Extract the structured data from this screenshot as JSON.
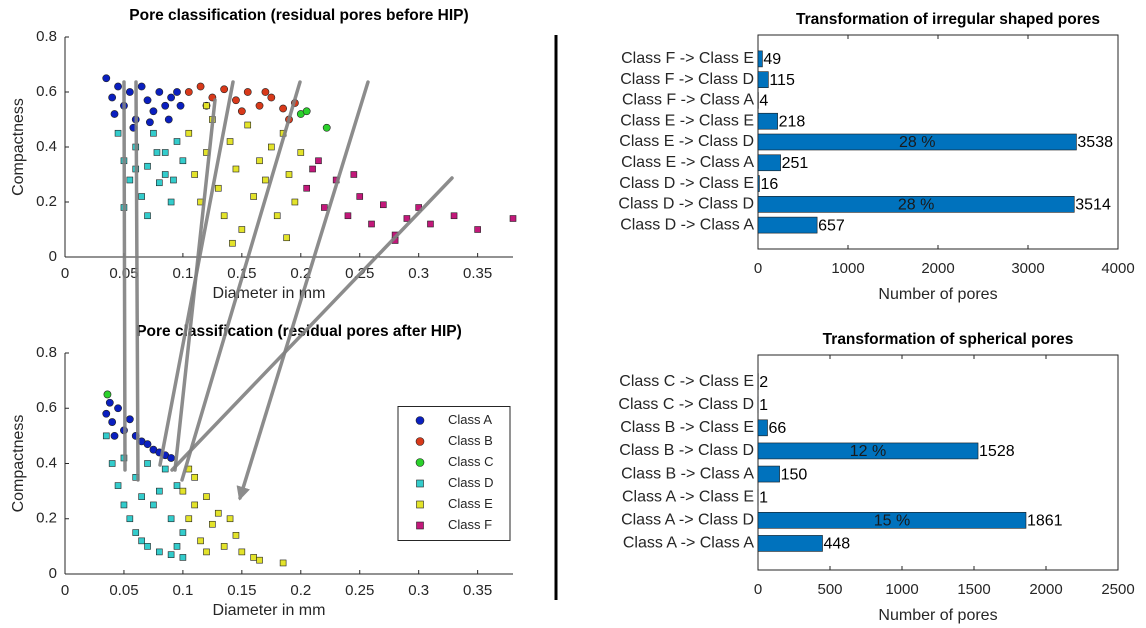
{
  "chart_data": [
    {
      "type": "scatter",
      "title": "Pore classification (residual pores before HIP)",
      "xlabel": "Diameter in mm",
      "ylabel": "Compactness",
      "xlim": [
        0,
        0.38
      ],
      "ylim": [
        0,
        0.8
      ],
      "xticks": [
        0,
        0.05,
        0.1,
        0.15,
        0.2,
        0.25,
        0.3,
        0.35
      ],
      "yticks": [
        0,
        0.2,
        0.4,
        0.6,
        0.8
      ],
      "series": [
        {
          "name": "Class A",
          "color": "#0a1fbf",
          "marker": "circle",
          "x": [
            0.035,
            0.04,
            0.045,
            0.05,
            0.055,
            0.06,
            0.065,
            0.07,
            0.075,
            0.08,
            0.085,
            0.09,
            0.095,
            0.042,
            0.058,
            0.072,
            0.088,
            0.098
          ],
          "y": [
            0.65,
            0.58,
            0.62,
            0.55,
            0.6,
            0.5,
            0.62,
            0.57,
            0.53,
            0.6,
            0.55,
            0.58,
            0.6,
            0.52,
            0.47,
            0.49,
            0.5,
            0.55
          ]
        },
        {
          "name": "Class B",
          "color": "#d8391a",
          "marker": "circle",
          "x": [
            0.105,
            0.115,
            0.125,
            0.135,
            0.145,
            0.155,
            0.165,
            0.175,
            0.185,
            0.195,
            0.12,
            0.15,
            0.17,
            0.19
          ],
          "y": [
            0.6,
            0.62,
            0.58,
            0.61,
            0.57,
            0.6,
            0.55,
            0.58,
            0.54,
            0.56,
            0.55,
            0.53,
            0.6,
            0.5
          ]
        },
        {
          "name": "Class C",
          "color": "#2bd12b",
          "marker": "circle",
          "x": [
            0.2,
            0.205,
            0.222
          ],
          "y": [
            0.52,
            0.53,
            0.47
          ]
        },
        {
          "name": "Class D",
          "color": "#33cccc",
          "marker": "square",
          "x": [
            0.045,
            0.05,
            0.055,
            0.06,
            0.065,
            0.07,
            0.075,
            0.08,
            0.085,
            0.09,
            0.095,
            0.05,
            0.07,
            0.085,
            0.06,
            0.1,
            0.078,
            0.092
          ],
          "y": [
            0.45,
            0.35,
            0.28,
            0.4,
            0.22,
            0.33,
            0.45,
            0.27,
            0.38,
            0.2,
            0.42,
            0.18,
            0.15,
            0.3,
            0.32,
            0.35,
            0.38,
            0.28
          ]
        },
        {
          "name": "Class E",
          "color": "#e3e32a",
          "marker": "square",
          "x": [
            0.105,
            0.11,
            0.115,
            0.12,
            0.125,
            0.13,
            0.135,
            0.14,
            0.145,
            0.15,
            0.155,
            0.16,
            0.165,
            0.17,
            0.175,
            0.18,
            0.185,
            0.19,
            0.195,
            0.2,
            0.142,
            0.188,
            0.12
          ],
          "y": [
            0.45,
            0.3,
            0.2,
            0.38,
            0.5,
            0.25,
            0.15,
            0.42,
            0.32,
            0.1,
            0.48,
            0.22,
            0.35,
            0.28,
            0.4,
            0.15,
            0.45,
            0.3,
            0.2,
            0.38,
            0.05,
            0.07,
            0.55
          ]
        },
        {
          "name": "Class F",
          "color": "#c2187a",
          "marker": "square",
          "x": [
            0.205,
            0.21,
            0.22,
            0.23,
            0.24,
            0.25,
            0.26,
            0.27,
            0.28,
            0.29,
            0.31,
            0.33,
            0.35,
            0.38,
            0.3,
            0.215,
            0.245,
            0.28
          ],
          "y": [
            0.25,
            0.32,
            0.18,
            0.28,
            0.15,
            0.22,
            0.12,
            0.19,
            0.08,
            0.14,
            0.12,
            0.15,
            0.1,
            0.14,
            0.18,
            0.35,
            0.3,
            0.06
          ]
        }
      ]
    },
    {
      "type": "scatter",
      "title": "Pore classification (residual pores after HIP)",
      "xlabel": "Diameter in mm",
      "ylabel": "Compactness",
      "xlim": [
        0,
        0.38
      ],
      "ylim": [
        0,
        0.8
      ],
      "xticks": [
        0,
        0.05,
        0.1,
        0.15,
        0.2,
        0.25,
        0.3,
        0.35
      ],
      "yticks": [
        0,
        0.2,
        0.4,
        0.6,
        0.8
      ],
      "legend": "east",
      "series": [
        {
          "name": "Class A",
          "color": "#0a1fbf",
          "marker": "circle",
          "x": [
            0.035,
            0.038,
            0.04,
            0.045,
            0.05,
            0.055,
            0.06,
            0.065,
            0.07,
            0.075,
            0.08,
            0.085,
            0.09,
            0.042
          ],
          "y": [
            0.58,
            0.62,
            0.55,
            0.6,
            0.52,
            0.56,
            0.5,
            0.48,
            0.47,
            0.45,
            0.44,
            0.43,
            0.42,
            0.5
          ]
        },
        {
          "name": "Class B",
          "color": "#d8391a",
          "marker": "circle",
          "x": [],
          "y": []
        },
        {
          "name": "Class C",
          "color": "#2bd12b",
          "marker": "circle",
          "x": [
            0.036
          ],
          "y": [
            0.65
          ]
        },
        {
          "name": "Class D",
          "color": "#33cccc",
          "marker": "square",
          "x": [
            0.035,
            0.04,
            0.045,
            0.05,
            0.055,
            0.06,
            0.065,
            0.07,
            0.08,
            0.09,
            0.1,
            0.06,
            0.07,
            0.08,
            0.09,
            0.075,
            0.085,
            0.095,
            0.05,
            0.065,
            0.1,
            0.095
          ],
          "y": [
            0.5,
            0.4,
            0.32,
            0.25,
            0.2,
            0.15,
            0.12,
            0.1,
            0.08,
            0.07,
            0.06,
            0.35,
            0.4,
            0.3,
            0.2,
            0.25,
            0.38,
            0.32,
            0.42,
            0.28,
            0.15,
            0.1
          ]
        },
        {
          "name": "Class E",
          "color": "#e3e32a",
          "marker": "square",
          "x": [
            0.1,
            0.105,
            0.11,
            0.115,
            0.12,
            0.125,
            0.13,
            0.135,
            0.14,
            0.145,
            0.15,
            0.16,
            0.165,
            0.185,
            0.11,
            0.12,
            0.105
          ],
          "y": [
            0.3,
            0.2,
            0.25,
            0.12,
            0.28,
            0.18,
            0.22,
            0.1,
            0.2,
            0.14,
            0.08,
            0.06,
            0.05,
            0.04,
            0.35,
            0.08,
            0.38
          ]
        },
        {
          "name": "Class F",
          "color": "#c2187a",
          "marker": "square",
          "x": [],
          "y": []
        }
      ]
    },
    {
      "type": "barh",
      "title": "Transformation of irregular shaped pores",
      "xlabel": "Number of pores",
      "color": "#0072bd",
      "categories": [
        "Class F -> Class E",
        "Class F -> Class D",
        "Class F -> Class A",
        "Class E -> Class E",
        "Class E -> Class D",
        "Class E -> Class A",
        "Class D -> Class E",
        "Class D -> Class D",
        "Class D -> Class A"
      ],
      "values": [
        49,
        115,
        4,
        218,
        3538,
        251,
        16,
        3514,
        657
      ],
      "inner_labels": [
        null,
        null,
        null,
        null,
        "28 %",
        null,
        null,
        "28 %",
        null
      ],
      "xlim": [
        0,
        4000
      ],
      "xticks": [
        0,
        1000,
        2000,
        3000,
        4000
      ]
    },
    {
      "type": "barh",
      "title": "Transformation of spherical pores",
      "xlabel": "Number of pores",
      "color": "#0072bd",
      "categories": [
        "Class C -> Class E",
        "Class C -> Class D",
        "Class B -> Class E",
        "Class B -> Class D",
        "Class B -> Class A",
        "Class A -> Class E",
        "Class A -> Class D",
        "Class A -> Class A"
      ],
      "values": [
        2,
        1,
        66,
        1528,
        150,
        1,
        1861,
        448
      ],
      "inner_labels": [
        null,
        null,
        null,
        "12 %",
        null,
        null,
        "15 %",
        null
      ],
      "xlim": [
        0,
        2500
      ],
      "xticks": [
        0,
        500,
        1000,
        1500,
        2000,
        2500
      ]
    }
  ]
}
